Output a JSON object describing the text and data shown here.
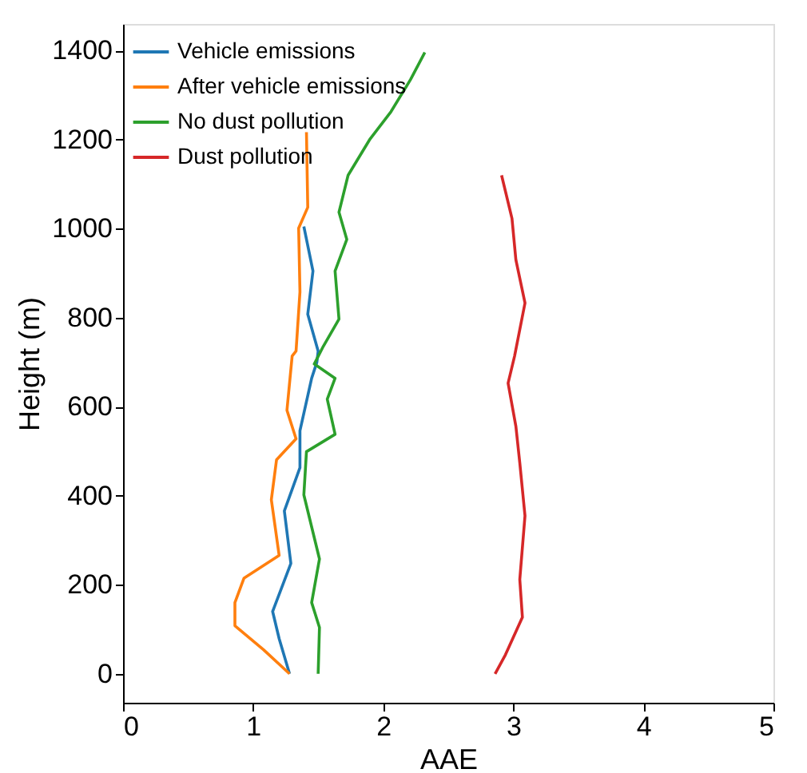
{
  "chart_data": {
    "type": "line",
    "xlabel": "AAE",
    "ylabel": "Height (m)",
    "xlim": [
      0,
      5
    ],
    "xticks": [
      0,
      1,
      2,
      3,
      4,
      5
    ],
    "ylim": [
      -65,
      1460
    ],
    "yticks": [
      0,
      200,
      400,
      600,
      800,
      1000,
      1200,
      1400
    ],
    "grid": false,
    "legend": "top left",
    "line_style": "solid",
    "marker": "none",
    "series": [
      {
        "name": "Vehicle emissions",
        "color": "#1f77b4",
        "x": [
          1.28,
          1.2,
          1.15,
          1.29,
          1.24,
          1.36,
          1.36,
          1.45,
          1.49,
          1.5,
          1.42,
          1.46,
          1.39
        ],
        "values": [
          0,
          79,
          140,
          248,
          366,
          463,
          546,
          664,
          700,
          725,
          808,
          905,
          1005
        ]
      },
      {
        "name": "After vehicle emissions",
        "color": "#ff7f0e",
        "x": [
          1.28,
          1.08,
          0.86,
          0.86,
          0.93,
          1.2,
          1.14,
          1.18,
          1.33,
          1.26,
          1.3,
          1.33,
          1.36,
          1.35,
          1.42,
          1.41
        ],
        "values": [
          0,
          54,
          108,
          160,
          215,
          266,
          391,
          481,
          528,
          592,
          714,
          725,
          858,
          1001,
          1048,
          1217
        ]
      },
      {
        "name": "No dust pollution",
        "color": "#2ca02c",
        "x": [
          1.5,
          1.51,
          1.45,
          1.51,
          1.39,
          1.41,
          1.63,
          1.57,
          1.63,
          1.47,
          1.54,
          1.66,
          1.63,
          1.72,
          1.66,
          1.73,
          1.9,
          2.06,
          2.21,
          2.32
        ],
        "values": [
          0,
          104,
          160,
          258,
          402,
          499,
          538,
          617,
          664,
          696,
          736,
          797,
          905,
          976,
          1037,
          1120,
          1202,
          1263,
          1335,
          1396
        ]
      },
      {
        "name": "Dust pollution",
        "color": "#d62728",
        "x": [
          2.86,
          2.94,
          3.07,
          3.05,
          3.09,
          3.05,
          3.02,
          2.96,
          3.01,
          3.09,
          3.02,
          2.99,
          2.91
        ],
        "values": [
          0,
          43,
          127,
          212,
          355,
          474,
          556,
          653,
          714,
          833,
          930,
          1023,
          1120
        ]
      }
    ]
  }
}
